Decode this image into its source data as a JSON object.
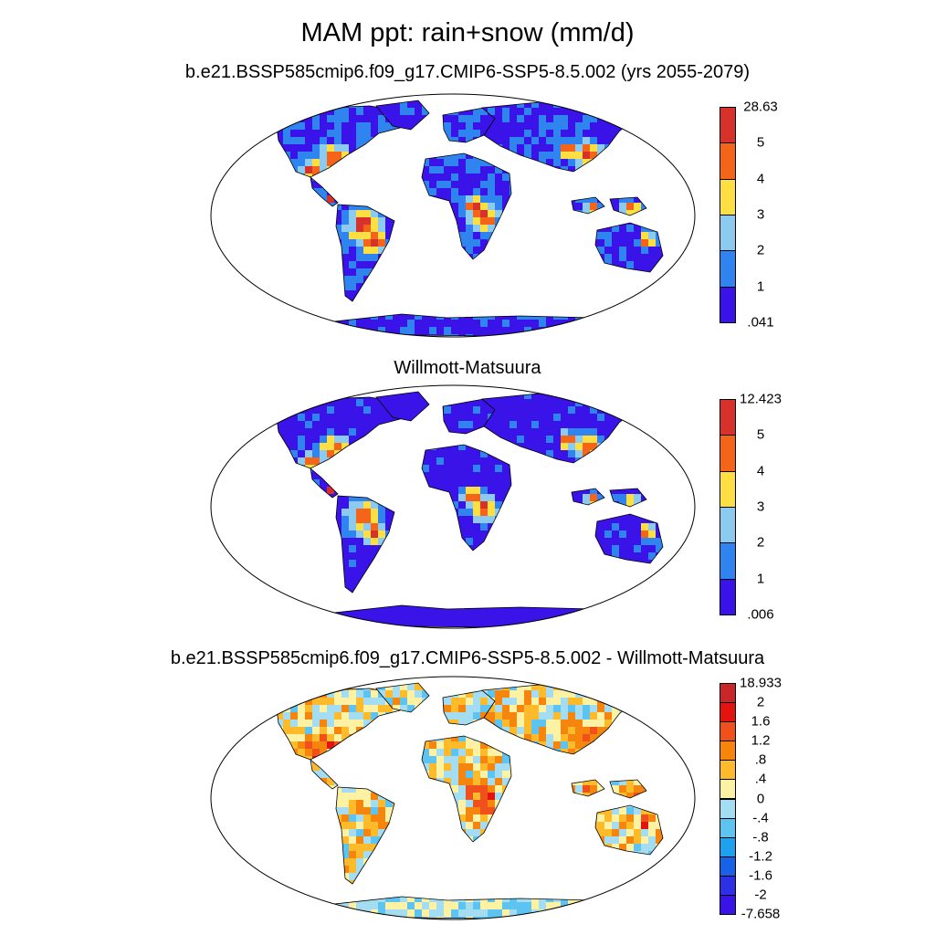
{
  "title": "MAM ppt: rain+snow (mm/d)",
  "panels": [
    {
      "id": "model",
      "subtitle": "b.e21.BSSP585cmip6.f09_g17.CMIP6-SSP5-8.5.002 (yrs 2055-2079)",
      "palette": "absolute",
      "colorbar": {
        "labels": [
          "28.63",
          "5",
          "4",
          "3",
          "2",
          "1",
          ".041"
        ],
        "colors": [
          "#d7312c",
          "#f46419",
          "#fddf43",
          "#8ccbef",
          "#2f84ef",
          "#3a13e9"
        ]
      }
    },
    {
      "id": "obs",
      "subtitle": "Willmott-Matsuura",
      "palette": "absolute",
      "colorbar": {
        "labels": [
          "12.423",
          "5",
          "4",
          "3",
          "2",
          "1",
          ".006"
        ],
        "colors": [
          "#d7312c",
          "#f46419",
          "#fddf43",
          "#8ccbef",
          "#2f84ef",
          "#3a13e9"
        ]
      }
    },
    {
      "id": "diff",
      "subtitle": "b.e21.BSSP585cmip6.f09_g17.CMIP6-SSP5-8.5.002 - Willmott-Matsuura",
      "palette": "difference",
      "colorbar": {
        "labels": [
          "18.933",
          "2",
          "1.6",
          "1.2",
          ".8",
          ".4",
          "0",
          "-.4",
          "-.8",
          "-1.2",
          "-1.6",
          "-2",
          "-7.658"
        ],
        "colors": [
          "#c9262a",
          "#e3140f",
          "#f0511c",
          "#f6850d",
          "#fdbb2c",
          "#fdf2a3",
          "#a4dcf2",
          "#5dc3f1",
          "#20a1ef",
          "#1762e7",
          "#2e30e6",
          "#3a13e9"
        ]
      }
    }
  ]
}
